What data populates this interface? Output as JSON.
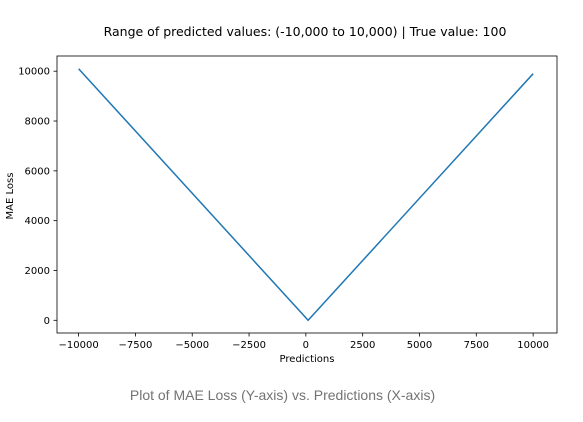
{
  "chart_data": {
    "type": "line",
    "title": "Range of predicted values: (-10,000 to 10,000) | True value: 100",
    "xlabel": "Predictions",
    "ylabel": "MAE Loss",
    "xlim": [
      -10950,
      11050
    ],
    "ylim": [
      -510,
      10610
    ],
    "x_ticks": [
      -10000,
      -7500,
      -5000,
      -2500,
      0,
      2500,
      5000,
      7500,
      10000
    ],
    "x_tick_labels": [
      "−10000",
      "−7500",
      "−5000",
      "−2500",
      "0",
      "2500",
      "5000",
      "7500",
      "10000"
    ],
    "y_ticks": [
      0,
      2000,
      4000,
      6000,
      8000,
      10000
    ],
    "y_tick_labels": [
      "0",
      "2000",
      "4000",
      "6000",
      "8000",
      "10000"
    ],
    "grid": false,
    "series": [
      {
        "color": "#1f77b4",
        "x": [
          -10000,
          100,
          10000
        ],
        "y": [
          10100,
          0,
          9900
        ]
      }
    ]
  },
  "caption": "Plot of MAE Loss (Y-axis) vs. Predictions (X-axis)"
}
